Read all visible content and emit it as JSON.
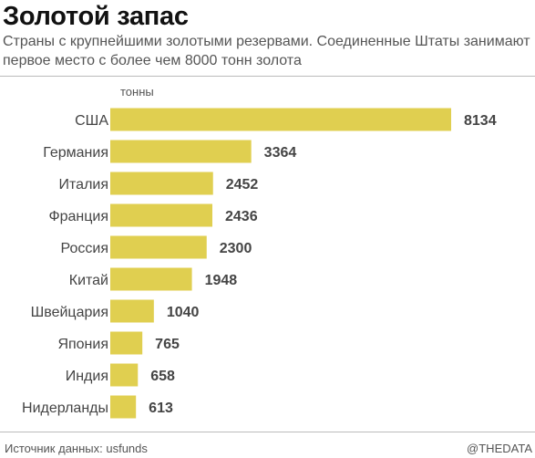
{
  "header": {
    "title": "Золотой запас",
    "subtitle": "Страны с крупнейшими золотыми резервами. Соединенные Штаты занимают первое место с более чем 8000 тонн золота"
  },
  "footer": {
    "source": "Источник данных: usfunds",
    "credit": "@THEDATA"
  },
  "colors": {
    "bar": "#e0cf50",
    "text": "#444444"
  },
  "chart_data": {
    "type": "bar",
    "orientation": "horizontal",
    "title": "Золотой запас",
    "unit_label": "тонны",
    "categories": [
      "США",
      "Германия",
      "Италия",
      "Франция",
      "Россия",
      "Китай",
      "Швейцария",
      "Япония",
      "Индия",
      "Нидерланды"
    ],
    "values": [
      8134,
      3364,
      2452,
      2436,
      2300,
      1948,
      1040,
      765,
      658,
      613
    ],
    "value_labels": [
      "8134",
      "3364",
      "2452",
      "2436",
      "2300",
      "1948",
      "1040",
      "765",
      "658",
      "613"
    ],
    "xlim": [
      0,
      8134
    ],
    "grid": false,
    "legend": "none"
  }
}
